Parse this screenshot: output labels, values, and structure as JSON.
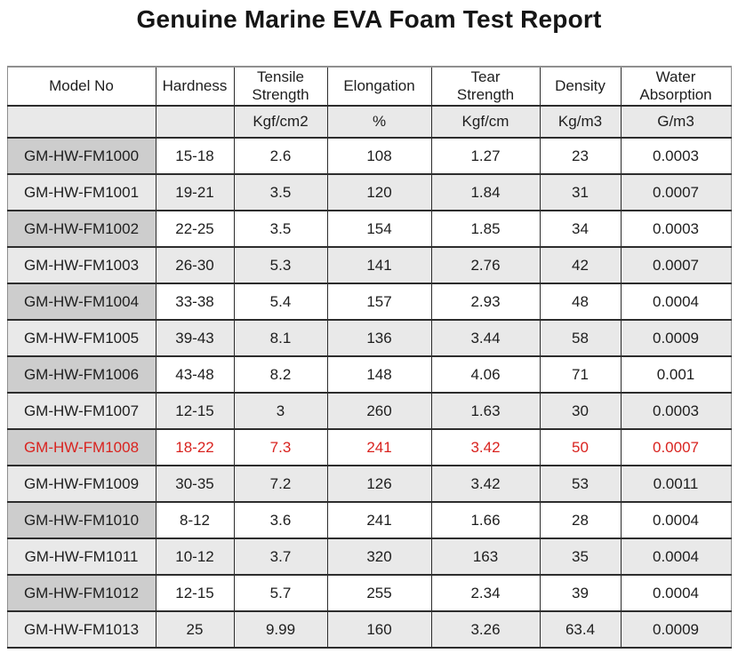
{
  "page": {
    "title": "Genuine Marine EVA Foam Test Report"
  },
  "colors": {
    "highlight_text": "#d9231f",
    "model_column_bg": "#cdcdcd",
    "stripe_bg": "#e9e9e9",
    "border_dark": "#2d2d2d",
    "text": "#1e1e1e"
  },
  "table": {
    "columns": [
      {
        "label": "Model No",
        "unit": ""
      },
      {
        "label": "Hardness",
        "unit": ""
      },
      {
        "label": "Tensile\nStrength",
        "unit": "Kgf/cm2"
      },
      {
        "label": "Elongation",
        "unit": "%"
      },
      {
        "label": "Tear\nStrength",
        "unit": "Kgf/cm"
      },
      {
        "label": "Density",
        "unit": "Kg/m3"
      },
      {
        "label": "Water\nAbsorption",
        "unit": "G/m3"
      }
    ],
    "rows": [
      {
        "model": "GM-HW-FM1000",
        "hardness": "15-18",
        "tensile_strength": "2.6",
        "elongation": "108",
        "tear_strength": "1.27",
        "density": "23",
        "water_absorption": "0.0003",
        "highlight": false
      },
      {
        "model": "GM-HW-FM1001",
        "hardness": "19-21",
        "tensile_strength": "3.5",
        "elongation": "120",
        "tear_strength": "1.84",
        "density": "31",
        "water_absorption": "0.0007",
        "highlight": false
      },
      {
        "model": "GM-HW-FM1002",
        "hardness": "22-25",
        "tensile_strength": "3.5",
        "elongation": "154",
        "tear_strength": "1.85",
        "density": "34",
        "water_absorption": "0.0003",
        "highlight": false
      },
      {
        "model": "GM-HW-FM1003",
        "hardness": "26-30",
        "tensile_strength": "5.3",
        "elongation": "141",
        "tear_strength": "2.76",
        "density": "42",
        "water_absorption": "0.0007",
        "highlight": false
      },
      {
        "model": "GM-HW-FM1004",
        "hardness": "33-38",
        "tensile_strength": "5.4",
        "elongation": "157",
        "tear_strength": "2.93",
        "density": "48",
        "water_absorption": "0.0004",
        "highlight": false
      },
      {
        "model": "GM-HW-FM1005",
        "hardness": "39-43",
        "tensile_strength": "8.1",
        "elongation": "136",
        "tear_strength": "3.44",
        "density": "58",
        "water_absorption": "0.0009",
        "highlight": false
      },
      {
        "model": "GM-HW-FM1006",
        "hardness": "43-48",
        "tensile_strength": "8.2",
        "elongation": "148",
        "tear_strength": "4.06",
        "density": "71",
        "water_absorption": "0.001",
        "highlight": false
      },
      {
        "model": "GM-HW-FM1007",
        "hardness": "12-15",
        "tensile_strength": "3",
        "elongation": "260",
        "tear_strength": "1.63",
        "density": "30",
        "water_absorption": "0.0003",
        "highlight": false
      },
      {
        "model": "GM-HW-FM1008",
        "hardness": "18-22",
        "tensile_strength": "7.3",
        "elongation": "241",
        "tear_strength": "3.42",
        "density": "50",
        "water_absorption": "0.0007",
        "highlight": true
      },
      {
        "model": "GM-HW-FM1009",
        "hardness": "30-35",
        "tensile_strength": "7.2",
        "elongation": "126",
        "tear_strength": "3.42",
        "density": "53",
        "water_absorption": "0.0011",
        "highlight": false
      },
      {
        "model": "GM-HW-FM1010",
        "hardness": "8-12",
        "tensile_strength": "3.6",
        "elongation": "241",
        "tear_strength": "1.66",
        "density": "28",
        "water_absorption": "0.0004",
        "highlight": false
      },
      {
        "model": "GM-HW-FM1011",
        "hardness": "10-12",
        "tensile_strength": "3.7",
        "elongation": "320",
        "tear_strength": "163",
        "density": "35",
        "water_absorption": "0.0004",
        "highlight": false
      },
      {
        "model": "GM-HW-FM1012",
        "hardness": "12-15",
        "tensile_strength": "5.7",
        "elongation": "255",
        "tear_strength": "2.34",
        "density": "39",
        "water_absorption": "0.0004",
        "highlight": false
      },
      {
        "model": "GM-HW-FM1013",
        "hardness": "25",
        "tensile_strength": "9.99",
        "elongation": "160",
        "tear_strength": "3.26",
        "density": "63.4",
        "water_absorption": "0.0009",
        "highlight": false
      }
    ]
  }
}
